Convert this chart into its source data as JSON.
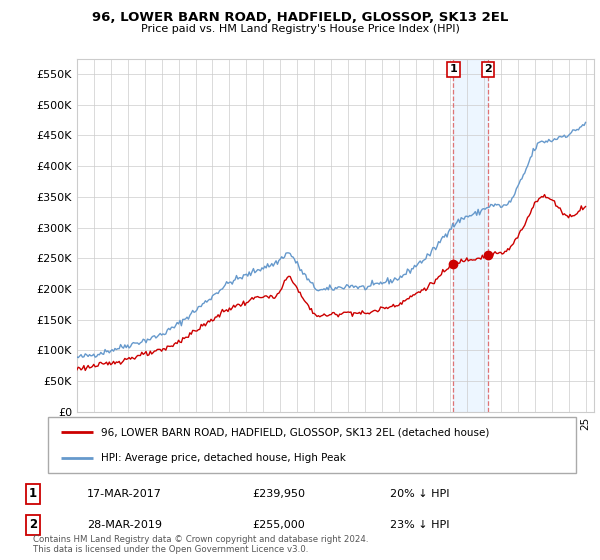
{
  "title": "96, LOWER BARN ROAD, HADFIELD, GLOSSOP, SK13 2EL",
  "subtitle": "Price paid vs. HM Land Registry's House Price Index (HPI)",
  "ylim": [
    0,
    575000
  ],
  "legend_line1": "96, LOWER BARN ROAD, HADFIELD, GLOSSOP, SK13 2EL (detached house)",
  "legend_line2": "HPI: Average price, detached house, High Peak",
  "footnote": "Contains HM Land Registry data © Crown copyright and database right 2024.\nThis data is licensed under the Open Government Licence v3.0.",
  "marker1_date": "17-MAR-2017",
  "marker1_price": "£239,950",
  "marker1_hpi": "20% ↓ HPI",
  "marker2_date": "28-MAR-2019",
  "marker2_price": "£255,000",
  "marker2_hpi": "23% ↓ HPI",
  "sale1_x": 2017.21,
  "sale1_y": 239950,
  "sale2_x": 2019.24,
  "sale2_y": 255000,
  "hpi_color": "#6699cc",
  "price_color": "#cc0000",
  "marker_color": "#cc0000",
  "shade_color": "#ddeeff",
  "background_color": "#ffffff",
  "grid_color": "#cccccc",
  "xlim_left": 1995,
  "xlim_right": 2025.5
}
